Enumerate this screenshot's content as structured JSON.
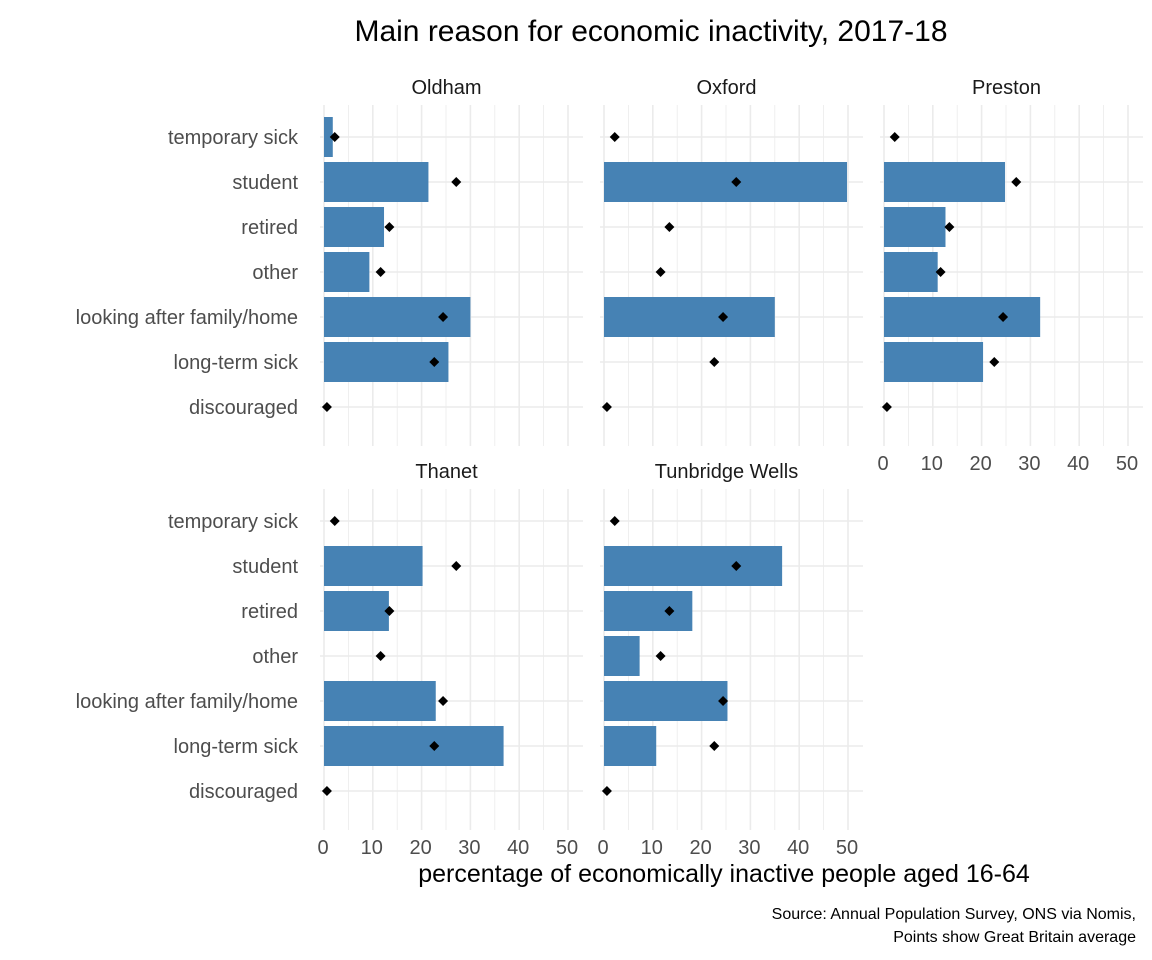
{
  "chart_data": {
    "type": "bar",
    "orientation": "horizontal",
    "title": "Main reason for economic inactivity, 2017-18",
    "xlabel": "percentage of economically inactive people aged 16-64",
    "ylabel": "",
    "caption": [
      "Source: Annual Population Survey, ONS via Nomis,",
      "Points show Great Britain average"
    ],
    "categories": [
      "temporary sick",
      "student",
      "retired",
      "other",
      "looking after family/home",
      "long-term sick",
      "discouraged"
    ],
    "xlim": [
      0,
      52
    ],
    "xticks": [
      0,
      10,
      20,
      30,
      40,
      50
    ],
    "grid": true,
    "colors": {
      "bar": "#4682b4",
      "point": "#000000",
      "grid": "#ebebeb"
    },
    "gb_average": [
      2.2,
      27.1,
      13.4,
      11.6,
      24.4,
      22.6,
      0.6
    ],
    "facets": [
      {
        "name": "Oldham",
        "values": [
          1.8,
          21.4,
          12.3,
          9.3,
          30.0,
          25.5,
          0
        ]
      },
      {
        "name": "Oxford",
        "values": [
          0,
          49.8,
          0,
          0,
          35.0,
          0,
          0
        ]
      },
      {
        "name": "Preston",
        "values": [
          0,
          24.8,
          12.6,
          11.0,
          32.0,
          20.3,
          0
        ]
      },
      {
        "name": "Thanet",
        "values": [
          0,
          20.2,
          13.3,
          0,
          22.9,
          36.8,
          0
        ]
      },
      {
        "name": "Tunbridge Wells",
        "values": [
          0,
          36.5,
          18.1,
          7.3,
          25.3,
          10.7,
          0
        ]
      }
    ]
  }
}
